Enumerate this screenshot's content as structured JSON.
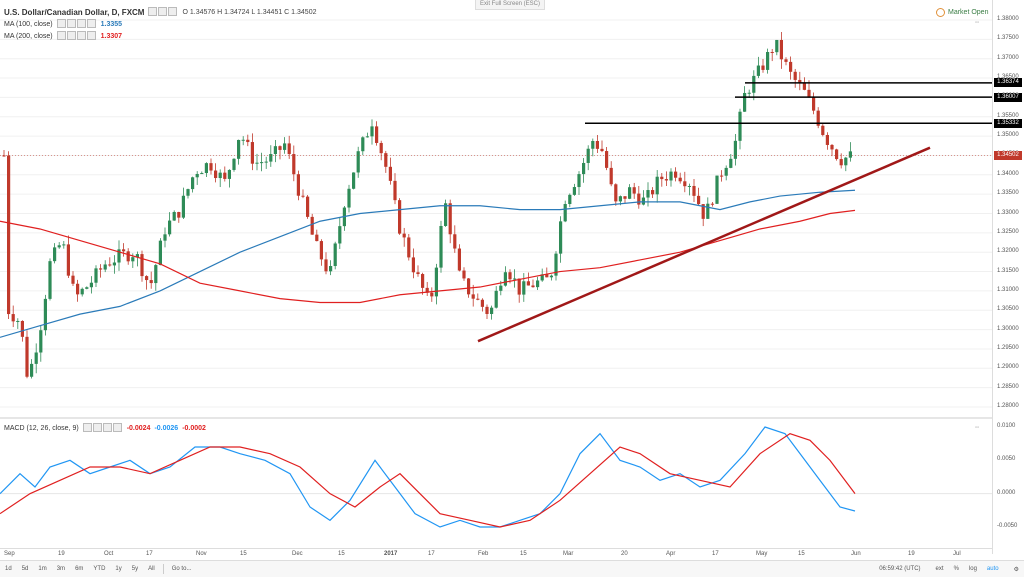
{
  "legend": {
    "symbol": "U.S. Dollar/Canadian Dollar, D, FXCM",
    "ohlc": "O 1.34576  H 1.34724  L 1.34451  C 1.34502",
    "ma100_label": "MA (100, close)",
    "ma100_value": "1.3355",
    "ma200_label": "MA (200, close)",
    "ma200_value": "1.3307",
    "macd_label": "MACD (12, 26, close, 9)",
    "macd_values": [
      "-0.0024",
      "-0.0026",
      "-0.0002"
    ]
  },
  "exit_fullscreen": "Exit Full Screen (ESC)",
  "market_status": "Market Open",
  "colors": {
    "up": "#2e8b57",
    "down": "#c0392b",
    "ma100": "#2b7bb9",
    "ma200": "#e02020",
    "trend": "#a01818",
    "macd": "#2196f3",
    "signal": "#e02020"
  },
  "price_axis": [
    "1.38000",
    "1.37500",
    "1.37000",
    "1.36500",
    "1.36000",
    "1.35500",
    "1.35000",
    "1.34500",
    "1.34000",
    "1.33500",
    "1.33000",
    "1.32500",
    "1.32000",
    "1.31500",
    "1.31000",
    "1.30500",
    "1.30000",
    "1.29500",
    "1.29000",
    "1.28500",
    "1.28000"
  ],
  "price_markers": [
    {
      "label": "1.36374",
      "color": "#000000"
    },
    {
      "label": "1.36007",
      "color": "#000000"
    },
    {
      "label": "1.35332",
      "color": "#000000"
    },
    {
      "label": "1.34502",
      "color": "#c0392b"
    }
  ],
  "macd_axis": [
    "0.0100",
    "0.0050",
    "0.0000",
    "-0.0050"
  ],
  "time_axis": [
    "Sep",
    "19",
    "Oct",
    "17",
    "Nov",
    "15",
    "Dec",
    "15",
    "2017",
    "17",
    "Feb",
    "15",
    "Mar",
    "20",
    "Apr",
    "17",
    "May",
    "15",
    "Jun",
    "19",
    "Jul"
  ],
  "bottom_bar": {
    "timeframes": [
      "1d",
      "5d",
      "1m",
      "3m",
      "6m",
      "YTD",
      "1y",
      "5y",
      "All"
    ],
    "goto": "Go to...",
    "clock": "06:59:42 (UTC)",
    "options": [
      "ext",
      "%",
      "log",
      "auto"
    ]
  },
  "chart_data": {
    "type": "candlestick",
    "price_range": [
      1.276,
      1.382
    ],
    "horizontal_levels": [
      1.36374,
      1.36007,
      1.35332
    ],
    "last_price": 1.34502,
    "macd_range": [
      -0.0075,
      0.0105
    ],
    "candles_note": "daily OHLC approximated from image",
    "series": []
  }
}
